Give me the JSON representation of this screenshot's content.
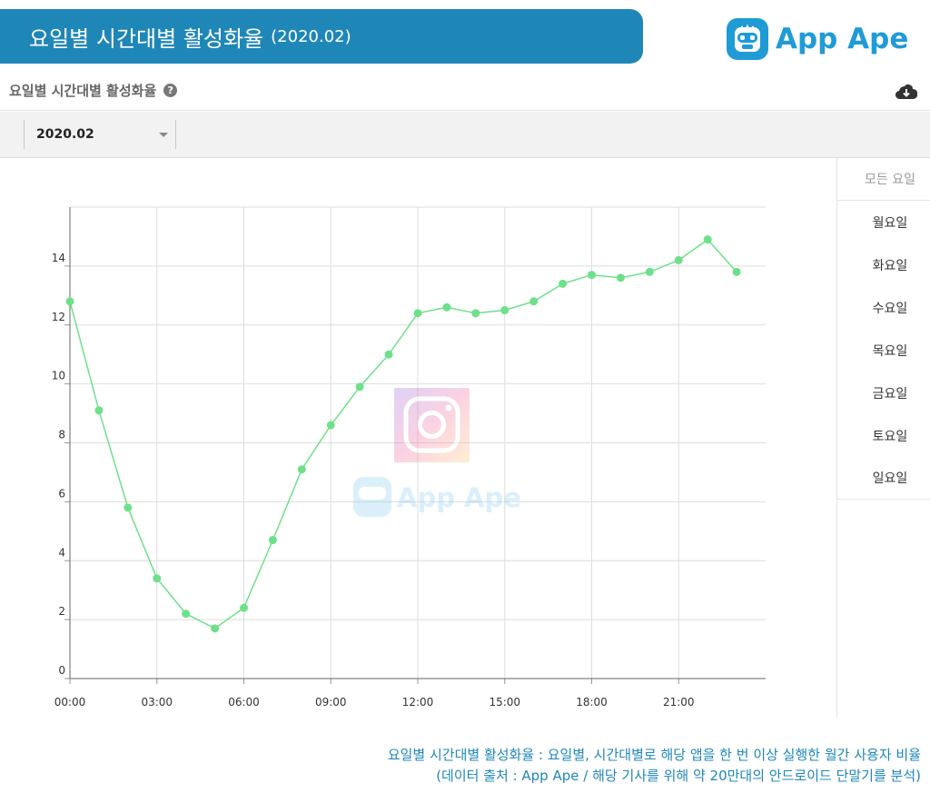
{
  "header": {
    "title": "요일별 시간대별 활성화율",
    "period": "(2020.02)",
    "brand_name": "App Ape"
  },
  "section": {
    "title": "요일별 시간대별 활성화율",
    "help_icon": "question-circle-icon",
    "download_icon": "cloud-download-icon"
  },
  "filter": {
    "period_value": "2020.02"
  },
  "day_filter": {
    "items": [
      "모든 요일",
      "월요일",
      "화요일",
      "수요일",
      "목요일",
      "금요일",
      "토요일",
      "일요일"
    ]
  },
  "watermark": {
    "brand_name": "App Ape"
  },
  "chart_data": {
    "type": "line",
    "x": [
      "00:00",
      "01:00",
      "02:00",
      "03:00",
      "04:00",
      "05:00",
      "06:00",
      "07:00",
      "08:00",
      "09:00",
      "10:00",
      "11:00",
      "12:00",
      "13:00",
      "14:00",
      "15:00",
      "16:00",
      "17:00",
      "18:00",
      "19:00",
      "20:00",
      "21:00",
      "22:00",
      "23:00"
    ],
    "x_tick_labels": [
      "00:00",
      "03:00",
      "06:00",
      "09:00",
      "12:00",
      "15:00",
      "18:00",
      "21:00"
    ],
    "y_tick_labels": [
      "0",
      "2",
      "4",
      "6",
      "8",
      "10",
      "12",
      "14"
    ],
    "series": [
      {
        "values": [
          12.8,
          9.1,
          5.8,
          3.4,
          2.2,
          1.7,
          2.4,
          4.7,
          7.1,
          8.6,
          9.9,
          11.0,
          12.4,
          12.6,
          12.4,
          12.5,
          12.8,
          13.4,
          13.7,
          13.6,
          13.8,
          14.2,
          14.9,
          13.8
        ]
      }
    ],
    "ylim": [
      0,
      16
    ],
    "grid": true,
    "color": "#6ee08a",
    "xlabel": "",
    "ylabel": ""
  },
  "footnote": {
    "line1": "요일별 시간대별 활성화율 : 요일별, 시간대별로 해당 앱을 한 번 이상 실행한 월간 사용자 비율",
    "line2": "(데이터 출처 : App Ape / 해당 기사를 위해 약 20만대의 안드로이드 단말기를 분석)"
  }
}
